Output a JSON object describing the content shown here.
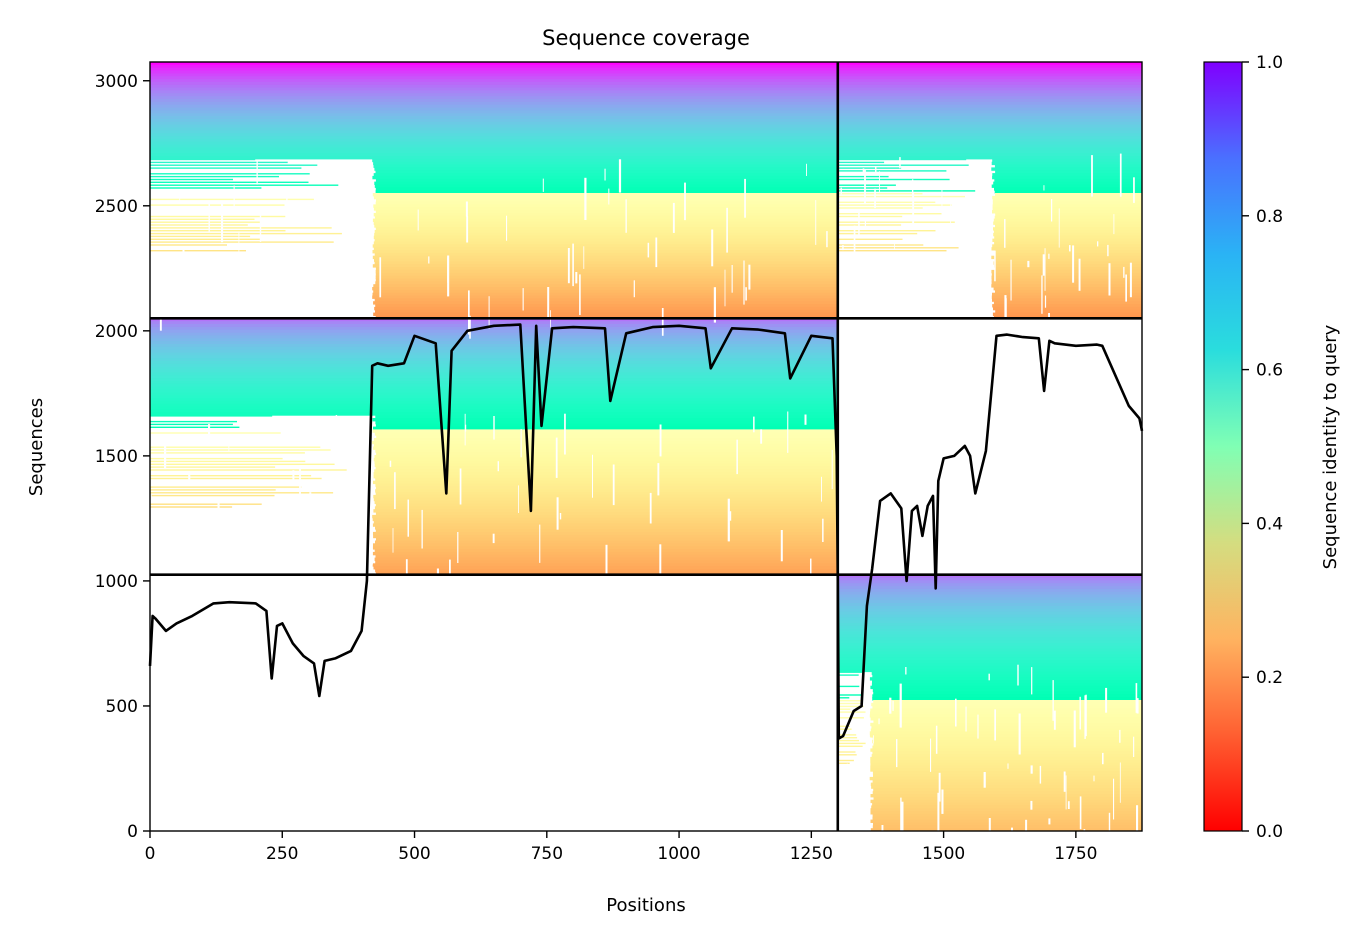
{
  "chart_data": {
    "type": "heatmap",
    "title": "Sequence coverage",
    "xlabel": "Positions",
    "ylabel": "Sequences",
    "xlim": [
      0,
      1875
    ],
    "ylim": [
      0,
      3075
    ],
    "xticks": [
      "0",
      "250",
      "500",
      "750",
      "1000",
      "1250",
      "1500",
      "1750"
    ],
    "yticks": [
      "0",
      "500",
      "1000",
      "1500",
      "2000",
      "2500",
      "3000"
    ],
    "colorbar": {
      "label": "Sequence identity to query",
      "range": [
        0,
        1
      ],
      "ticks": [
        "0.0",
        "0.2",
        "0.4",
        "0.6",
        "0.8",
        "1.0"
      ],
      "colormap": "rainbow"
    },
    "chain_boundaries_x": [
      1300
    ],
    "chain_boundaries_y": [
      1025,
      2050
    ],
    "blocks": [
      {
        "x": [
          0,
          1300
        ],
        "y": [
          2050,
          3075
        ],
        "identity_top": 1.0,
        "identity_bottom": 0.2,
        "coverage_start_lower": 420
      },
      {
        "x": [
          1300,
          1875
        ],
        "y": [
          2050,
          3075
        ],
        "identity_top": 1.0,
        "identity_bottom": 0.2,
        "coverage_start_lower": 1590
      },
      {
        "x": [
          0,
          1300
        ],
        "y": [
          1025,
          2050
        ],
        "identity_top": 0.85,
        "identity_bottom": 0.22,
        "coverage_start_lower": 420
      },
      {
        "x": [
          1300,
          1875
        ],
        "y": [
          0,
          1025
        ],
        "identity_top": 0.85,
        "identity_bottom": 0.27,
        "coverage_start_lower": 1360
      }
    ],
    "coverage_line": {
      "x": [
        0,
        5,
        10,
        30,
        50,
        80,
        120,
        150,
        200,
        220,
        230,
        240,
        250,
        270,
        290,
        310,
        320,
        330,
        350,
        380,
        400,
        410,
        420,
        430,
        450,
        480,
        500,
        540,
        560,
        570,
        600,
        650,
        700,
        720,
        730,
        740,
        760,
        800,
        860,
        870,
        900,
        950,
        1000,
        1050,
        1060,
        1100,
        1150,
        1200,
        1210,
        1250,
        1290,
        1298,
        1300,
        1302,
        1310,
        1330,
        1345,
        1355,
        1365,
        1380,
        1400,
        1420,
        1430,
        1440,
        1450,
        1460,
        1470,
        1480,
        1485,
        1490,
        1500,
        1520,
        1540,
        1550,
        1560,
        1580,
        1600,
        1620,
        1650,
        1680,
        1690,
        1700,
        1710,
        1750,
        1790,
        1800,
        1850,
        1870,
        1875
      ],
      "y": [
        660,
        860,
        850,
        800,
        830,
        860,
        910,
        915,
        910,
        880,
        610,
        820,
        830,
        750,
        700,
        670,
        540,
        680,
        690,
        720,
        800,
        1000,
        1860,
        1870,
        1860,
        1870,
        1980,
        1950,
        1350,
        1920,
        2000,
        2020,
        2025,
        1280,
        2020,
        1620,
        2010,
        2015,
        2010,
        1720,
        1990,
        2015,
        2020,
        2010,
        1850,
        2010,
        2005,
        1990,
        1810,
        1980,
        1970,
        1500,
        1000,
        370,
        380,
        480,
        500,
        900,
        1050,
        1320,
        1350,
        1290,
        1000,
        1280,
        1300,
        1180,
        1300,
        1340,
        970,
        1400,
        1490,
        1500,
        1540,
        1500,
        1350,
        1520,
        1980,
        1985,
        1975,
        1970,
        1760,
        1960,
        1950,
        1940,
        1945,
        1940,
        1700,
        1650,
        1600
      ]
    }
  }
}
